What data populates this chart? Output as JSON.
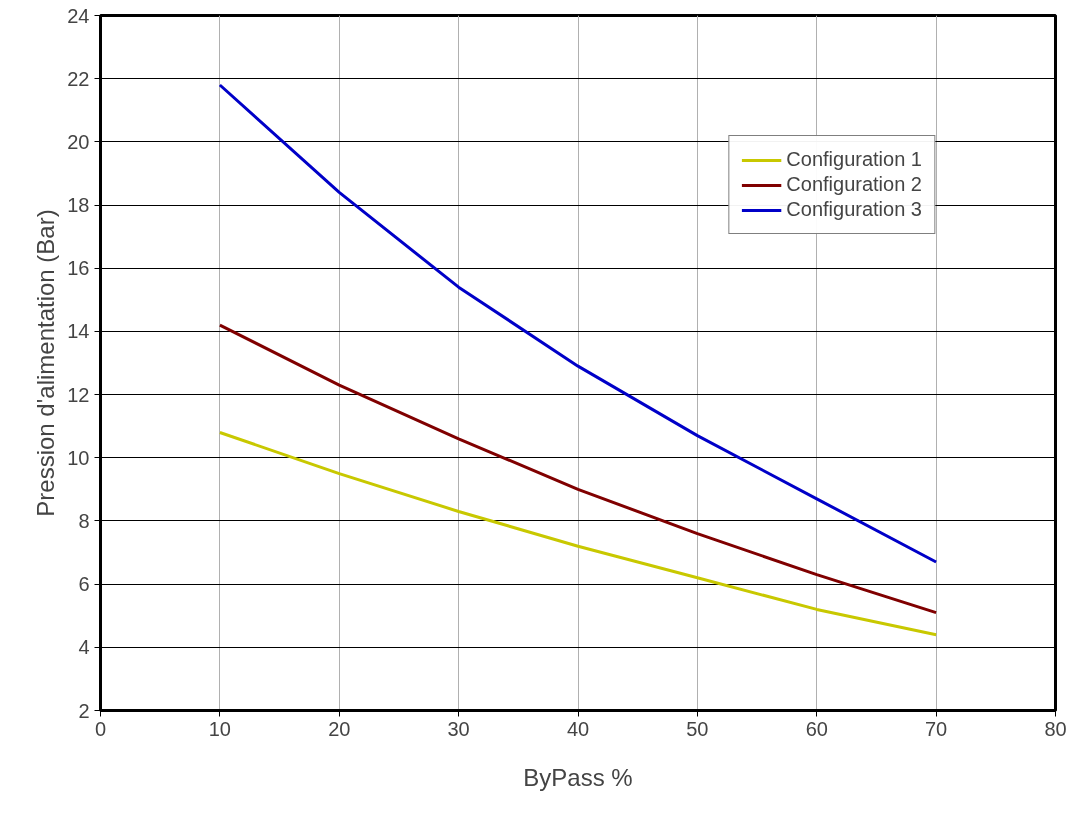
{
  "chart_data": {
    "type": "line",
    "xlabel": "ByPass %",
    "ylabel": "Pression d'alimentation (Bar)",
    "x": [
      10,
      20,
      30,
      40,
      50,
      60,
      70
    ],
    "series": [
      {
        "name": "Configuration 1",
        "color": "#c8c800",
        "values": [
          10.8,
          9.5,
          8.3,
          7.2,
          6.2,
          5.2,
          4.4
        ]
      },
      {
        "name": "Configuration 2",
        "color": "#800000",
        "values": [
          14.2,
          12.3,
          10.6,
          9.0,
          7.6,
          6.3,
          5.1
        ]
      },
      {
        "name": "Configuration 3",
        "color": "#0000c8",
        "values": [
          21.8,
          18.4,
          15.4,
          12.9,
          10.7,
          8.7,
          6.7
        ]
      }
    ],
    "xlim": [
      0,
      80
    ],
    "xticks": [
      0,
      10,
      20,
      30,
      40,
      50,
      60,
      70,
      80
    ],
    "ylim": [
      2,
      24
    ],
    "yticks": [
      2,
      4,
      6,
      8,
      10,
      12,
      14,
      16,
      18,
      20,
      22,
      24
    ],
    "grid": true,
    "legend": "top right",
    "marker": "none",
    "line_style": "solid"
  }
}
